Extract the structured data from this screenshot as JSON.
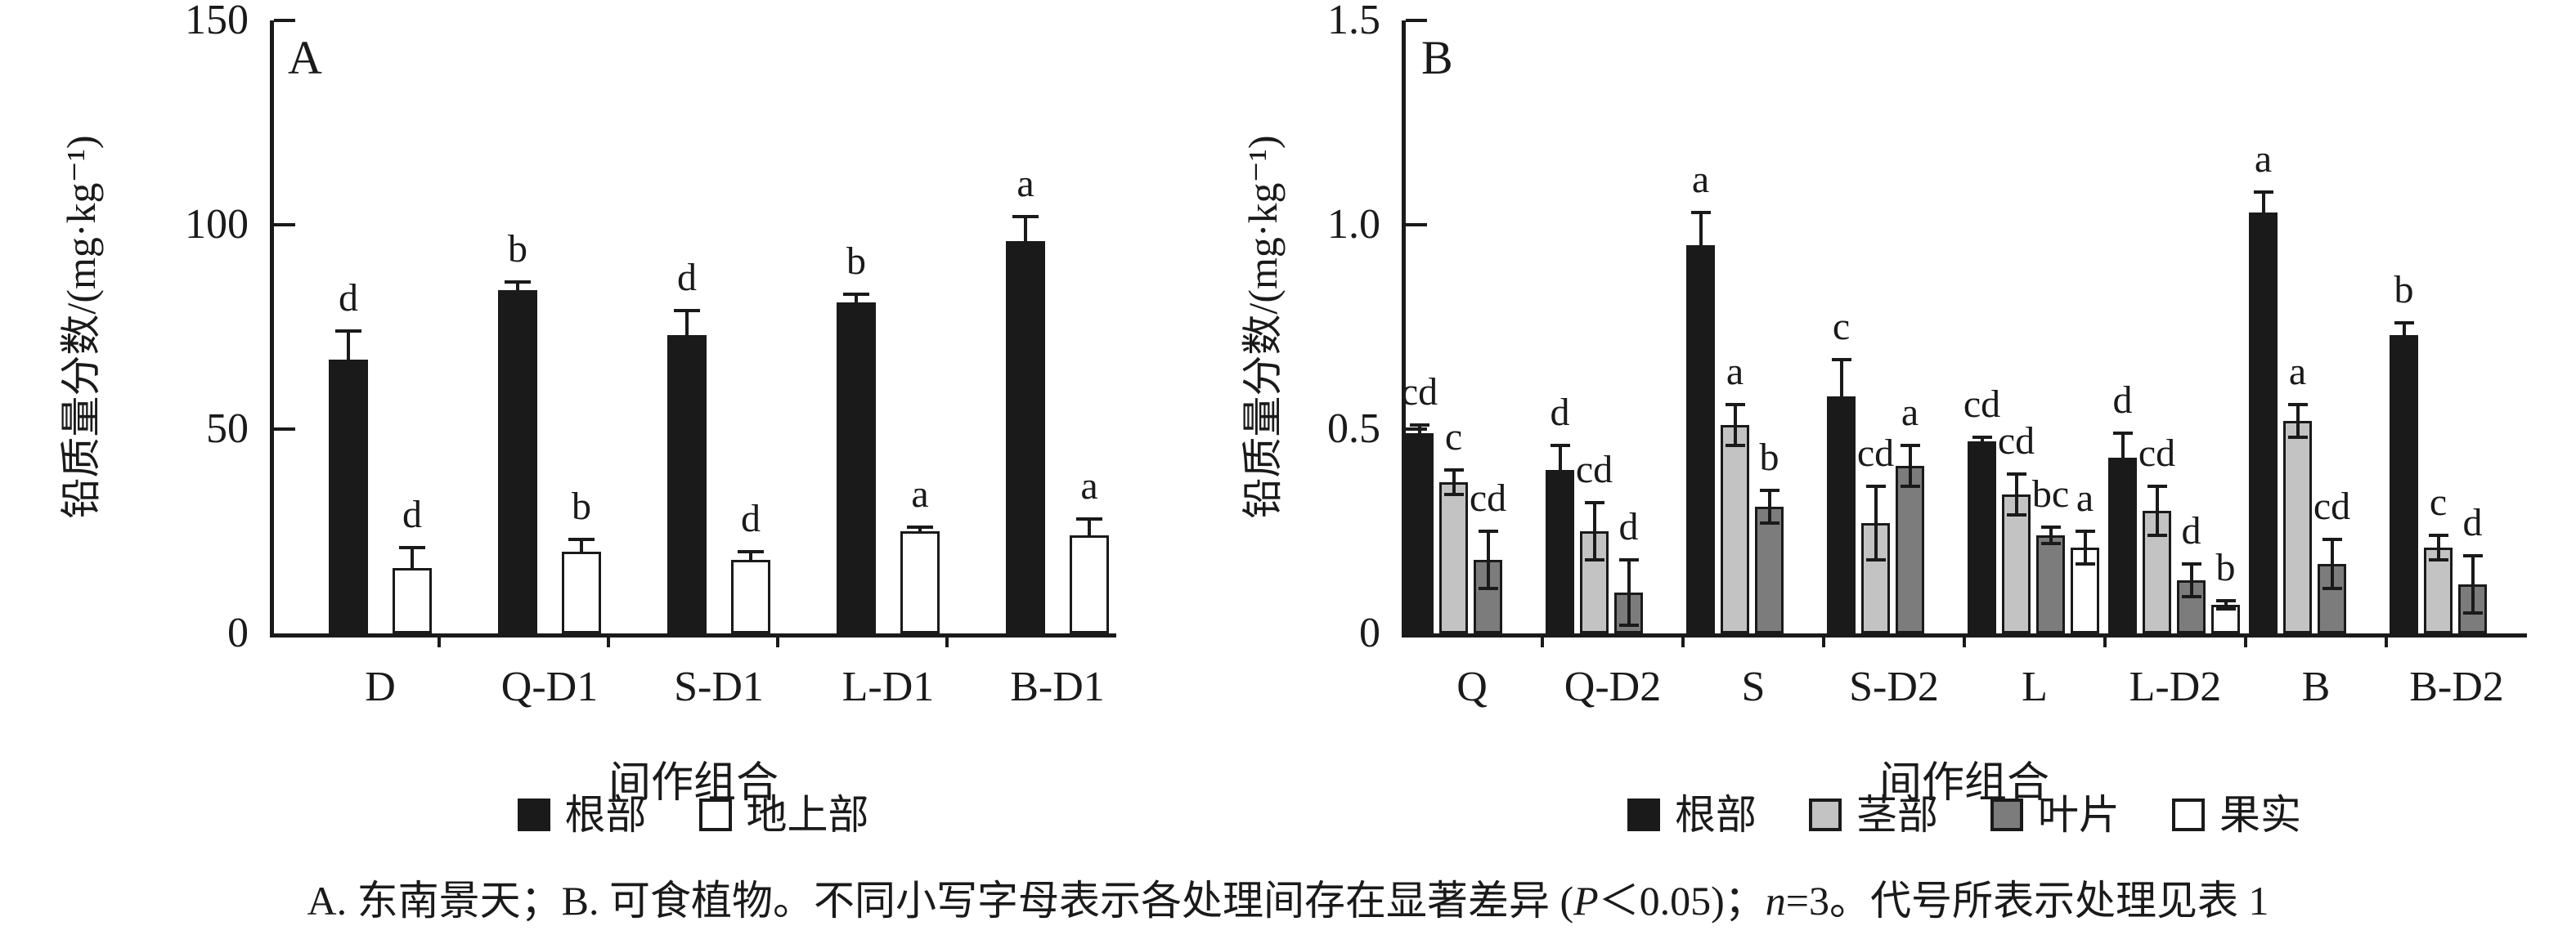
{
  "figure": {
    "caption_parts": {
      "part1": "A. 东南景天；B. 可食植物。不同小写字母表示各处理间存在显著差异 (",
      "p_italic": "P",
      "part2": "＜0.05)；",
      "n_italic": "n",
      "part3": "=3。代号所表示处理见表 1"
    }
  },
  "colors": {
    "root": "#1a1a1a",
    "shoot": "#ffffff",
    "stem": "#c3c3c3",
    "leaf": "#7c7c7c",
    "fruit": "#ffffff",
    "axis": "#1a1a1a"
  },
  "chart_data": [
    {
      "type": "bar",
      "panel_label": "A",
      "title": "",
      "ylabel": "铅质量分数/(mg·kg⁻¹)",
      "xlabel": "间作组合",
      "ylim": [
        0,
        150
      ],
      "yticks": [
        0,
        50,
        100,
        150
      ],
      "ytick_labels": [
        "0",
        "50",
        "100",
        "150"
      ],
      "grid": false,
      "legend_position": "bottom",
      "categories": [
        "D",
        "Q-D1",
        "S-D1",
        "L-D1",
        "B-D1"
      ],
      "series": [
        {
          "key": "root",
          "name": "根部",
          "color_key": "root",
          "values": [
            67,
            84,
            73,
            81,
            96
          ],
          "errors": [
            7,
            2,
            6,
            2,
            6
          ],
          "letters": [
            "d",
            "b",
            "d",
            "b",
            "a"
          ]
        },
        {
          "key": "shoot",
          "name": "地上部",
          "color_key": "shoot",
          "values": [
            16,
            20,
            18,
            25,
            24
          ],
          "errors": [
            5,
            3,
            2,
            1,
            4
          ],
          "letters": [
            "d",
            "b",
            "d",
            "a",
            "a"
          ]
        }
      ]
    },
    {
      "type": "bar",
      "panel_label": "B",
      "title": "",
      "ylabel": "铅质量分数/(mg·kg⁻¹)",
      "xlabel": "间作组合",
      "ylim": [
        0,
        1.5
      ],
      "yticks": [
        0,
        0.5,
        1.0,
        1.5
      ],
      "ytick_labels": [
        "0",
        "0.5",
        "1.0",
        "1.5"
      ],
      "grid": false,
      "legend_position": "bottom",
      "categories": [
        "Q",
        "Q-D2",
        "S",
        "S-D2",
        "L",
        "L-D2",
        "B",
        "B-D2"
      ],
      "series": [
        {
          "key": "root",
          "name": "根部",
          "color_key": "root",
          "values": [
            0.49,
            0.4,
            0.95,
            0.58,
            0.47,
            0.43,
            1.03,
            0.73
          ],
          "errors": [
            0.02,
            0.06,
            0.08,
            0.09,
            0.01,
            0.06,
            0.05,
            0.03
          ],
          "letters": [
            "cd",
            "d",
            "a",
            "c",
            "cd",
            "d",
            "a",
            "b"
          ]
        },
        {
          "key": "stem",
          "name": "茎部",
          "color_key": "stem",
          "values": [
            0.37,
            0.25,
            0.51,
            0.27,
            0.34,
            0.3,
            0.52,
            0.21
          ],
          "errors": [
            0.03,
            0.07,
            0.05,
            0.09,
            0.05,
            0.06,
            0.04,
            0.03
          ],
          "letters": [
            "c",
            "cd",
            "a",
            "cd",
            "cd",
            "cd",
            "a",
            "c"
          ]
        },
        {
          "key": "leaf",
          "name": "叶片",
          "color_key": "leaf",
          "values": [
            0.18,
            0.1,
            0.31,
            0.41,
            0.24,
            0.13,
            0.17,
            0.12
          ],
          "errors": [
            0.07,
            0.08,
            0.04,
            0.05,
            0.02,
            0.04,
            0.06,
            0.07
          ],
          "letters": [
            "cd",
            "d",
            "b",
            "a",
            "bc",
            "d",
            "cd",
            "d"
          ]
        },
        {
          "key": "fruit",
          "name": "果实",
          "color_key": "fruit",
          "values": [
            null,
            null,
            null,
            null,
            0.21,
            0.07,
            null,
            null
          ],
          "errors": [
            null,
            null,
            null,
            null,
            0.04,
            0.01,
            null,
            null
          ],
          "letters": [
            null,
            null,
            null,
            null,
            "a",
            "b",
            null,
            null
          ]
        }
      ]
    }
  ]
}
